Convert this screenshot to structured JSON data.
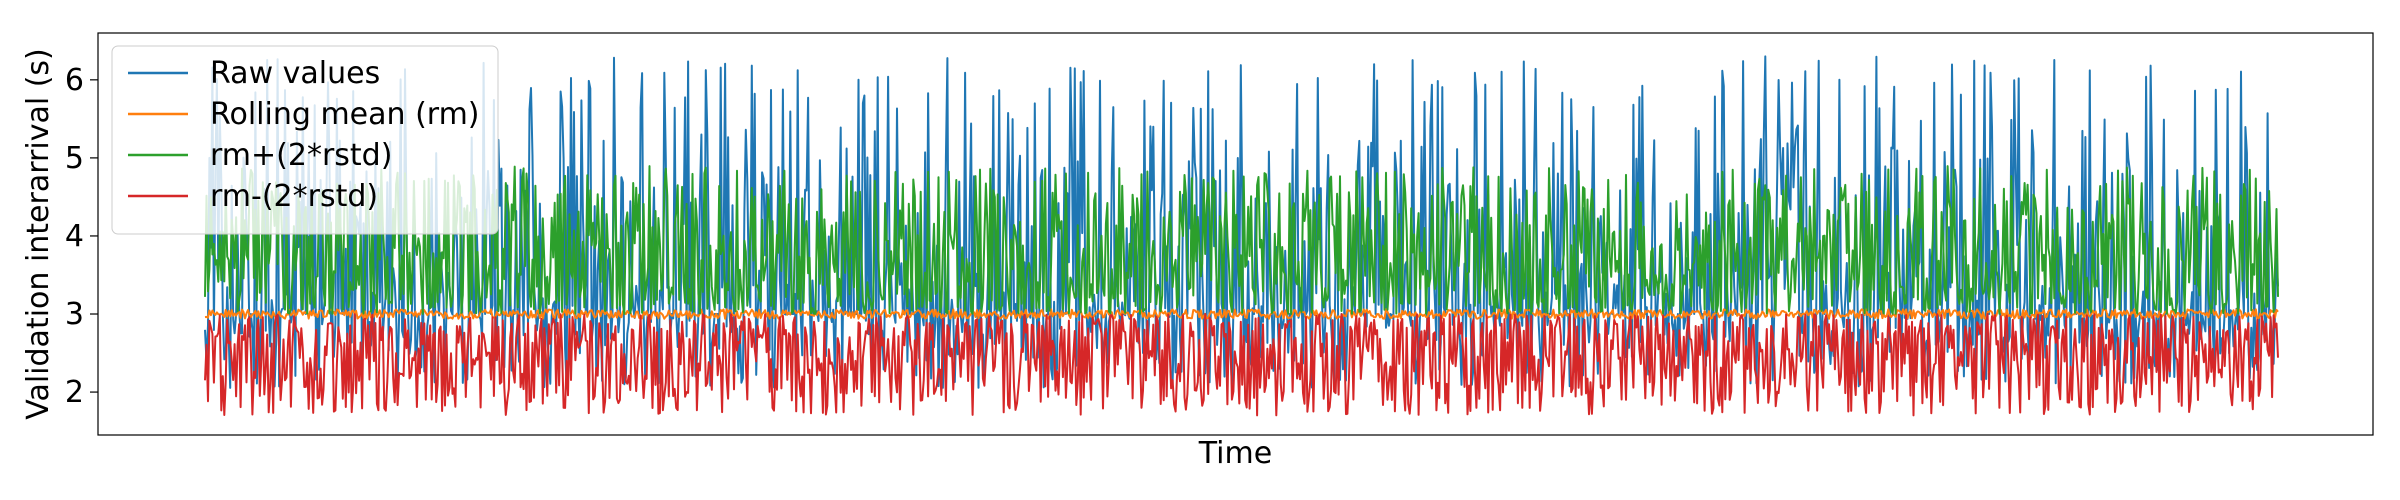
{
  "chart_data": {
    "type": "line",
    "title": "",
    "xlabel": "Time",
    "ylabel": "Validation interarrival (s)",
    "ylim": [
      1.45,
      6.6
    ],
    "yticks": [
      2,
      3,
      4,
      5,
      6
    ],
    "xticks": [],
    "grid": false,
    "legend_position": "top-left",
    "series": [
      {
        "name": "Raw values",
        "color": "#1f77b4",
        "mean": 3.0,
        "upper_range": [
          3.3,
          6.4
        ],
        "lower_range": [
          2.1,
          2.9
        ]
      },
      {
        "name": "Rolling mean (rm)",
        "color": "#ff7f0e",
        "mean": 3.0,
        "upper_range": [
          3.0,
          3.1
        ],
        "lower_range": [
          2.95,
          3.0
        ]
      },
      {
        "name": "rm+(2*rstd)",
        "color": "#2ca02c",
        "mean": 3.0,
        "upper_range": [
          3.0,
          4.9
        ],
        "lower_range": [
          3.0,
          3.0
        ]
      },
      {
        "name": "rm-(2*rstd)",
        "color": "#d62728",
        "mean": 3.0,
        "upper_range": [
          3.0,
          3.0
        ],
        "lower_range": [
          1.7,
          3.0
        ]
      }
    ],
    "n_points": 1400
  }
}
